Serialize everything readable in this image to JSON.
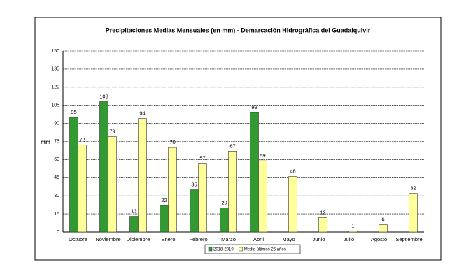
{
  "chart_data": {
    "type": "bar",
    "title": "Precipitaciones Medias Mensuales (en mm) - Demarcación Hidrográfica del Guadalquivir",
    "y_label": "mm",
    "categories": [
      "Octubre",
      "Noviembre",
      "Diciembre",
      "Enero",
      "Febrero",
      "Marzo",
      "Abril",
      "Mayo",
      "Junio",
      "Julio",
      "Agosto",
      "Septiembre"
    ],
    "series": [
      {
        "name": "2018-2019",
        "color": "#339933",
        "values": [
          95,
          108,
          13,
          22,
          35,
          20,
          99,
          null,
          null,
          null,
          null,
          null
        ]
      },
      {
        "name": "Media últimos 25 años",
        "color": "#ffff99",
        "values": [
          72,
          79,
          94,
          70,
          57,
          67,
          59,
          46,
          12,
          1,
          6,
          32
        ]
      }
    ],
    "ylim": [
      0,
      150
    ],
    "yticks": [
      0,
      15,
      30,
      45,
      60,
      75,
      90,
      105,
      120,
      135,
      150
    ],
    "grid": true
  }
}
